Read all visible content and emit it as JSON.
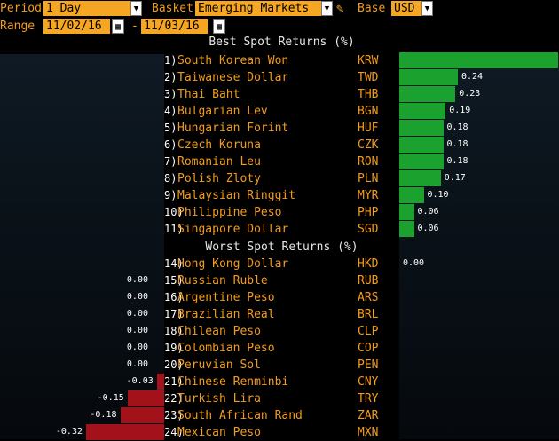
{
  "toolbar": {
    "period_label": "Period",
    "period_value": "1 Day",
    "basket_label": "Basket",
    "basket_value": "Emerging Markets",
    "base_label": "Base",
    "base_value": "USD",
    "range_label": "Range",
    "range_start": "11/02/16",
    "range_sep": "-",
    "range_end": "11/03/16"
  },
  "best_title": "Best Spot Returns (%)",
  "worst_title": "Worst Spot Returns (%)",
  "best": [
    {
      "rank": "1)",
      "name": "South Korean Won",
      "code": "KRW",
      "value": 0.65,
      "label": "0.65"
    },
    {
      "rank": "2)",
      "name": "Taiwanese Dollar",
      "code": "TWD",
      "value": 0.24,
      "label": "0.24"
    },
    {
      "rank": "3)",
      "name": "Thai Baht",
      "code": "THB",
      "value": 0.23,
      "label": "0.23"
    },
    {
      "rank": "4)",
      "name": "Bulgarian Lev",
      "code": "BGN",
      "value": 0.19,
      "label": "0.19"
    },
    {
      "rank": "5)",
      "name": "Hungarian Forint",
      "code": "HUF",
      "value": 0.18,
      "label": "0.18"
    },
    {
      "rank": "6)",
      "name": "Czech Koruna",
      "code": "CZK",
      "value": 0.18,
      "label": "0.18"
    },
    {
      "rank": "7)",
      "name": "Romanian Leu",
      "code": "RON",
      "value": 0.18,
      "label": "0.18"
    },
    {
      "rank": "8)",
      "name": "Polish Zloty",
      "code": "PLN",
      "value": 0.17,
      "label": "0.17"
    },
    {
      "rank": "9)",
      "name": "Malaysian Ringgit",
      "code": "MYR",
      "value": 0.1,
      "label": "0.10"
    },
    {
      "rank": "10)",
      "name": "Philippine Peso",
      "code": "PHP",
      "value": 0.06,
      "label": "0.06"
    },
    {
      "rank": "11)",
      "name": "Singapore Dollar",
      "code": "SGD",
      "value": 0.06,
      "label": "0.06"
    }
  ],
  "worst": [
    {
      "rank": "14)",
      "name": "Hong Kong Dollar",
      "code": "HKD",
      "value": 0.0,
      "label": "0.00"
    },
    {
      "rank": "15)",
      "name": "Russian Ruble",
      "code": "RUB",
      "value": 0.0,
      "label": "0.00"
    },
    {
      "rank": "16)",
      "name": "Argentine Peso",
      "code": "ARS",
      "value": 0.0,
      "label": "0.00"
    },
    {
      "rank": "17)",
      "name": "Brazilian Real",
      "code": "BRL",
      "value": 0.0,
      "label": "0.00"
    },
    {
      "rank": "18)",
      "name": "Chilean Peso",
      "code": "CLP",
      "value": 0.0,
      "label": "0.00"
    },
    {
      "rank": "19)",
      "name": "Colombian Peso",
      "code": "COP",
      "value": 0.0,
      "label": "0.00"
    },
    {
      "rank": "20)",
      "name": "Peruvian Sol",
      "code": "PEN",
      "value": 0.0,
      "label": "0.00"
    },
    {
      "rank": "21)",
      "name": "Chinese Renminbi",
      "code": "CNY",
      "value": -0.03,
      "label": "-0.03"
    },
    {
      "rank": "22)",
      "name": "Turkish Lira",
      "code": "TRY",
      "value": -0.15,
      "label": "-0.15"
    },
    {
      "rank": "23)",
      "name": "South African Rand",
      "code": "ZAR",
      "value": -0.18,
      "label": "-0.18"
    },
    {
      "rank": "24)",
      "name": "Mexican Peso",
      "code": "MXN",
      "value": -0.32,
      "label": "-0.32"
    }
  ],
  "chart_data": {
    "type": "bar",
    "categories": [
      "KRW",
      "TWD",
      "THB",
      "BGN",
      "HUF",
      "CZK",
      "RON",
      "PLN",
      "MYR",
      "PHP",
      "SGD",
      "HKD",
      "RUB",
      "ARS",
      "BRL",
      "CLP",
      "COP",
      "PEN",
      "CNY",
      "TRY",
      "ZAR",
      "MXN"
    ],
    "values": [
      0.65,
      0.24,
      0.23,
      0.19,
      0.18,
      0.18,
      0.18,
      0.17,
      0.1,
      0.06,
      0.06,
      0.0,
      0.0,
      0.0,
      0.0,
      0.0,
      0.0,
      0.0,
      -0.03,
      -0.15,
      -0.18,
      -0.32
    ],
    "title": "Best Spot Returns (%)"
  },
  "colors": {
    "positive": "#1aa12e",
    "negative": "#a3111a",
    "accent": "#f39c1b",
    "field": "#f5a623"
  },
  "icons": {
    "dropdown": "chevron-down-icon",
    "calendar": "calendar-icon",
    "edit": "pencil-icon"
  }
}
